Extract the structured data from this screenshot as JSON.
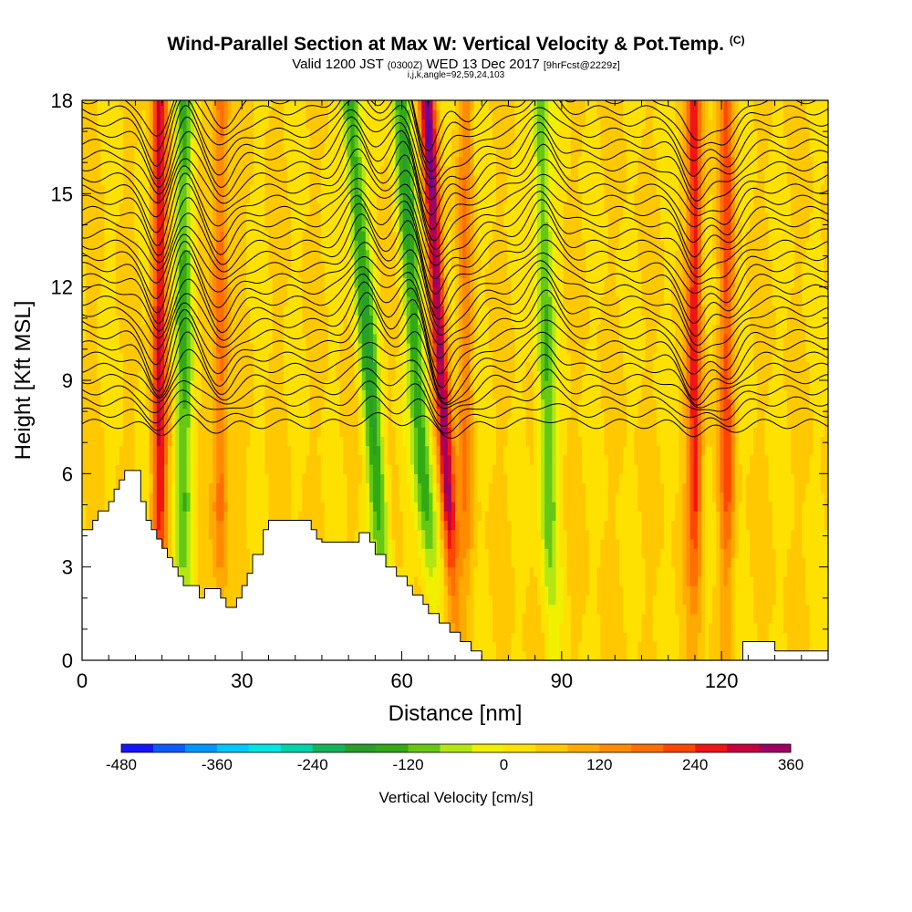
{
  "title": "Wind-Parallel Section at Max W: Vertical Velocity & Pot.Temp.",
  "title_suffix": "(C)",
  "subtitle_a": "Valid 1200 JST",
  "subtitle_b": "(0300Z)",
  "subtitle_c": "WED 13 Dec 2017",
  "subtitle_d": "[9hrFcst@2229z]",
  "subtitle2": "i,j,k,angle=92,59,24,103",
  "chart_data": {
    "type": "heatmap",
    "xlabel": "Distance [nm]",
    "ylabel": "Height [Kft MSL]",
    "xlim": [
      0,
      140
    ],
    "ylim": [
      0,
      18
    ],
    "xticks": [
      0,
      30,
      60,
      90,
      120
    ],
    "yticks": [
      0,
      3,
      6,
      9,
      12,
      15,
      18
    ],
    "colorbar": {
      "label": "Vertical Velocity [cm/s]",
      "min": -480,
      "max": 360,
      "step": 40,
      "tick_values": [
        -480,
        -360,
        -240,
        -120,
        0,
        120,
        240,
        360
      ],
      "colors": [
        "#1414ff",
        "#0a5cff",
        "#0096ff",
        "#00c8ff",
        "#00e6e6",
        "#00d2aa",
        "#14b45a",
        "#28a028",
        "#32aa14",
        "#64c814",
        "#b4e614",
        "#f0f000",
        "#ffe100",
        "#ffc800",
        "#ffaa00",
        "#ff8c00",
        "#ff6e00",
        "#ff4600",
        "#f01414",
        "#c8003c",
        "#a00064",
        "#6e0096"
      ]
    },
    "velocity_bands": [
      {
        "x": 14.5,
        "w": 240,
        "lean": 0.0
      },
      {
        "x": 19.0,
        "w": -150,
        "lean": 0.0
      },
      {
        "x": 26.0,
        "w": 150,
        "lean": 0.0
      },
      {
        "x": 54.0,
        "w": -200,
        "lean": -0.35
      },
      {
        "x": 63.0,
        "w": -190,
        "lean": -0.3
      },
      {
        "x": 67.5,
        "w": 320,
        "lean": -0.25
      },
      {
        "x": 72.0,
        "w": 100,
        "lean": 0.0
      },
      {
        "x": 87.0,
        "w": -160,
        "lean": -0.1
      },
      {
        "x": 115.0,
        "w": 220,
        "lean": 0.0
      },
      {
        "x": 121.0,
        "w": 160,
        "lean": 0.0
      }
    ],
    "terrain_ft": [
      [
        0,
        4200
      ],
      [
        2,
        4200
      ],
      [
        2,
        4500
      ],
      [
        3,
        4500
      ],
      [
        3,
        4800
      ],
      [
        5,
        4800
      ],
      [
        5,
        5100
      ],
      [
        6,
        5100
      ],
      [
        6,
        5500
      ],
      [
        7,
        5500
      ],
      [
        7,
        5800
      ],
      [
        8,
        5800
      ],
      [
        8,
        6100
      ],
      [
        11,
        6100
      ],
      [
        11,
        5100
      ],
      [
        12,
        5100
      ],
      [
        12,
        4500
      ],
      [
        13,
        4500
      ],
      [
        13,
        4200
      ],
      [
        14,
        4200
      ],
      [
        14,
        3900
      ],
      [
        15,
        3900
      ],
      [
        15,
        3600
      ],
      [
        16,
        3600
      ],
      [
        16,
        3300
      ],
      [
        17,
        3300
      ],
      [
        17,
        3000
      ],
      [
        18,
        3000
      ],
      [
        18,
        2700
      ],
      [
        19,
        2700
      ],
      [
        19,
        2400
      ],
      [
        22,
        2400
      ],
      [
        22,
        2000
      ],
      [
        23,
        2000
      ],
      [
        23,
        2300
      ],
      [
        26,
        2300
      ],
      [
        26,
        2000
      ],
      [
        27,
        2000
      ],
      [
        27,
        1700
      ],
      [
        29,
        1700
      ],
      [
        29,
        2000
      ],
      [
        30,
        2000
      ],
      [
        30,
        2400
      ],
      [
        31,
        2400
      ],
      [
        31,
        2800
      ],
      [
        32,
        2800
      ],
      [
        32,
        3400
      ],
      [
        34,
        3400
      ],
      [
        34,
        4200
      ],
      [
        35,
        4200
      ],
      [
        35,
        4500
      ],
      [
        43,
        4500
      ],
      [
        43,
        4200
      ],
      [
        44,
        4200
      ],
      [
        44,
        3900
      ],
      [
        45,
        3900
      ],
      [
        45,
        3800
      ],
      [
        52,
        3800
      ],
      [
        52,
        4100
      ],
      [
        54,
        4100
      ],
      [
        54,
        3800
      ],
      [
        55,
        3800
      ],
      [
        55,
        3400
      ],
      [
        57,
        3400
      ],
      [
        57,
        3000
      ],
      [
        59,
        3000
      ],
      [
        59,
        2700
      ],
      [
        61,
        2700
      ],
      [
        61,
        2400
      ],
      [
        62,
        2400
      ],
      [
        62,
        2100
      ],
      [
        64,
        2100
      ],
      [
        64,
        1800
      ],
      [
        65,
        1800
      ],
      [
        65,
        1500
      ],
      [
        67,
        1500
      ],
      [
        67,
        1200
      ],
      [
        69,
        1200
      ],
      [
        69,
        900
      ],
      [
        71,
        900
      ],
      [
        71,
        600
      ],
      [
        73,
        600
      ],
      [
        73,
        300
      ],
      [
        75,
        300
      ],
      [
        75,
        0
      ],
      [
        124,
        0
      ],
      [
        124,
        600
      ],
      [
        130,
        600
      ],
      [
        130,
        300
      ],
      [
        140,
        300
      ],
      [
        140,
        0
      ],
      [
        0,
        0
      ]
    ],
    "theta_contour_count": 30
  }
}
